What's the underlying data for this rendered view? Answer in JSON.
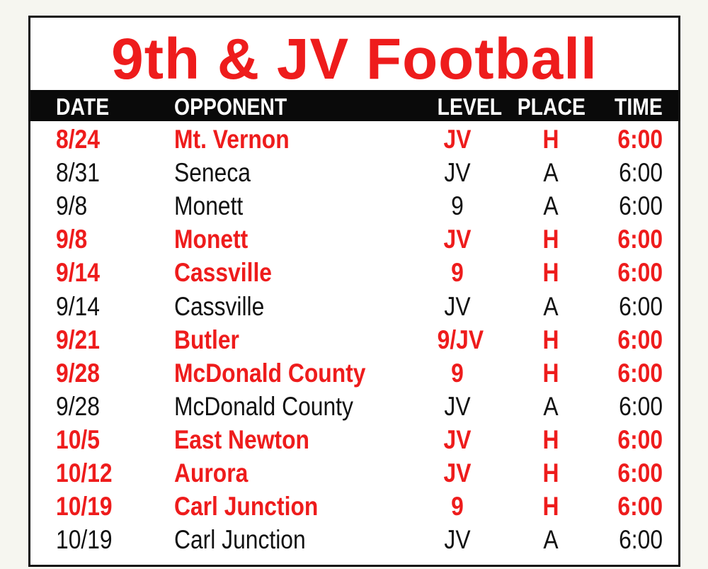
{
  "title": "9th & JV Football",
  "colors": {
    "accent": "#ee1c1c",
    "header_bg": "#0a0a0a"
  },
  "columns": [
    "DATE",
    "OPPONENT",
    "LEVEL",
    "PLACE",
    "TIME"
  ],
  "rows": [
    {
      "date": "8/24",
      "opponent": "Mt. Vernon",
      "level": "JV",
      "place": "H",
      "time": "6:00"
    },
    {
      "date": "8/31",
      "opponent": "Seneca",
      "level": "JV",
      "place": "A",
      "time": "6:00"
    },
    {
      "date": "9/8",
      "opponent": "Monett",
      "level": "9",
      "place": "A",
      "time": "6:00"
    },
    {
      "date": "9/8",
      "opponent": "Monett",
      "level": "JV",
      "place": "H",
      "time": "6:00"
    },
    {
      "date": "9/14",
      "opponent": "Cassville",
      "level": "9",
      "place": "H",
      "time": "6:00"
    },
    {
      "date": "9/14",
      "opponent": "Cassville",
      "level": "JV",
      "place": "A",
      "time": "6:00"
    },
    {
      "date": "9/21",
      "opponent": "Butler",
      "level": "9/JV",
      "place": "H",
      "time": "6:00"
    },
    {
      "date": "9/28",
      "opponent": "McDonald County",
      "level": "9",
      "place": "H",
      "time": "6:00"
    },
    {
      "date": "9/28",
      "opponent": "McDonald County",
      "level": "JV",
      "place": "A",
      "time": "6:00"
    },
    {
      "date": "10/5",
      "opponent": "East Newton",
      "level": "JV",
      "place": "H",
      "time": "6:00"
    },
    {
      "date": "10/12",
      "opponent": "Aurora",
      "level": "JV",
      "place": "H",
      "time": "6:00"
    },
    {
      "date": "10/19",
      "opponent": "Carl Junction",
      "level": "9",
      "place": "H",
      "time": "6:00"
    },
    {
      "date": "10/19",
      "opponent": "Carl Junction",
      "level": "JV",
      "place": "A",
      "time": "6:00"
    }
  ]
}
